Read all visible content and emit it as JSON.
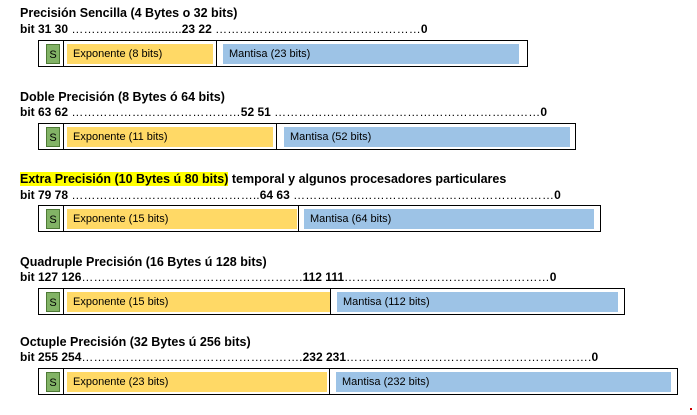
{
  "formats": [
    {
      "title_parts": [
        {
          "text": "Precisión Sencilla (4 Bytes o 32 bits)",
          "highlight": false
        }
      ],
      "bit_parts": [
        {
          "text": "bit  31 30 ",
          "dots": false
        },
        {
          "text": "………………...........",
          "dots": true
        },
        {
          "text": "23  22 ",
          "dots": false
        },
        {
          "text": "……………………………………………",
          "dots": true
        },
        {
          "text": "0",
          "dots": false
        }
      ],
      "sign_label": "S",
      "exponent_label": "Exponente  (8 bits)",
      "mantissa_label": "Mantisa (23 bits)"
    },
    {
      "title_parts": [
        {
          "text": "Doble Precisión (8 Bytes ó 64 bits)",
          "highlight": false
        }
      ],
      "bit_parts": [
        {
          "text": "bit  63 62 ",
          "dots": false
        },
        {
          "text": "……………………………………",
          "dots": true
        },
        {
          "text": "52  51 ",
          "dots": false
        },
        {
          "text": "…………………………………………………………",
          "dots": true
        },
        {
          "text": "0",
          "dots": false
        }
      ],
      "sign_label": "S",
      "exponent_label": "Exponente  (11 bits)",
      "mantissa_label": "Mantisa (52 bits)"
    },
    {
      "title_parts": [
        {
          "text": "Extra Precisión (10 Bytes ú 80 bits)",
          "highlight": true
        },
        {
          "text": " temporal y algunos procesadores particulares",
          "highlight": false
        }
      ],
      "bit_parts": [
        {
          "text": "bit  79 78 ",
          "dots": false
        },
        {
          "text": "………………………………………..",
          "dots": true
        },
        {
          "text": "64  63 ",
          "dots": false
        },
        {
          "text": "……………..…………………………………………",
          "dots": true
        },
        {
          "text": "0",
          "dots": false
        }
      ],
      "sign_label": "S",
      "exponent_label": "Exponente   (15 bits)",
      "mantissa_label": "Mantisa (64 bits)"
    },
    {
      "title_parts": [
        {
          "text": "Quadruple Precisión (16 Bytes ú 128 bits)",
          "highlight": false
        }
      ],
      "bit_parts": [
        {
          "text": "bit  127 126",
          "dots": false
        },
        {
          "text": "……………………………………………….",
          "dots": true
        },
        {
          "text": "112  111",
          "dots": false
        },
        {
          "text": "……………………………………………",
          "dots": true
        },
        {
          "text": "0",
          "dots": false
        }
      ],
      "sign_label": "S",
      "exponent_label": "Exponente   (15 bits)",
      "mantissa_label": "Mantisa (112 bits)"
    },
    {
      "title_parts": [
        {
          "text": "Octuple Precisión (32 Bytes ú 256 bits)",
          "highlight": false
        }
      ],
      "bit_parts": [
        {
          "text": "bit  255 254",
          "dots": false
        },
        {
          "text": "……………………………………………….",
          "dots": true
        },
        {
          "text": "232  231",
          "dots": false
        },
        {
          "text": "…………………………………………………….",
          "dots": true
        },
        {
          "text": "0",
          "dots": false
        }
      ],
      "sign_label": "S",
      "exponent_label": "Exponente   (23 bits)",
      "mantissa_label": "Mantisa (232 bits)"
    }
  ],
  "colors": {
    "sign": "#82b366",
    "exponent": "#ffd966",
    "mantissa": "#9dc3e6",
    "highlight": "#ffff00"
  }
}
